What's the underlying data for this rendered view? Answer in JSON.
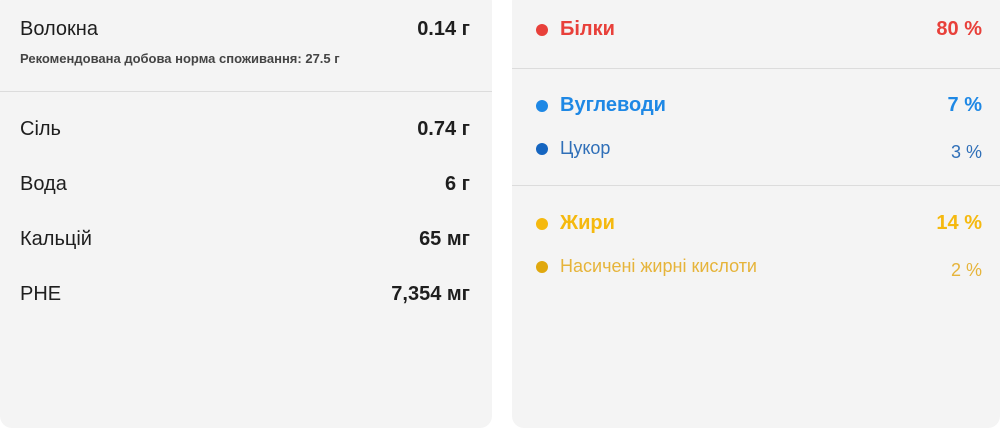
{
  "left": {
    "fiber": {
      "label": "Волокна",
      "value": "0.14 г",
      "recommendation": "Рекомендована добова норма споживання: 27.5 г"
    },
    "rows": [
      {
        "label": "Сіль",
        "value": "0.74 г"
      },
      {
        "label": "Вода",
        "value": "6 г"
      },
      {
        "label": "Кальцій",
        "value": "65 мг"
      },
      {
        "label": "PHE",
        "value": "7,354 мг"
      }
    ]
  },
  "right": {
    "protein": {
      "label": "Білки",
      "value": "80 %",
      "color": "#e8403a"
    },
    "carbs": {
      "label": "Вуглеводи",
      "value": "7 %",
      "color": "#1e88e5"
    },
    "sugar": {
      "label": "Цукор",
      "value": "3 %",
      "color": "#1565c0"
    },
    "fat": {
      "label": "Жири",
      "value": "14 %",
      "color": "#f5b90f"
    },
    "saturated": {
      "label": "Насичені жирні кислоти",
      "value": "2 %",
      "color": "#e0a80e"
    }
  }
}
